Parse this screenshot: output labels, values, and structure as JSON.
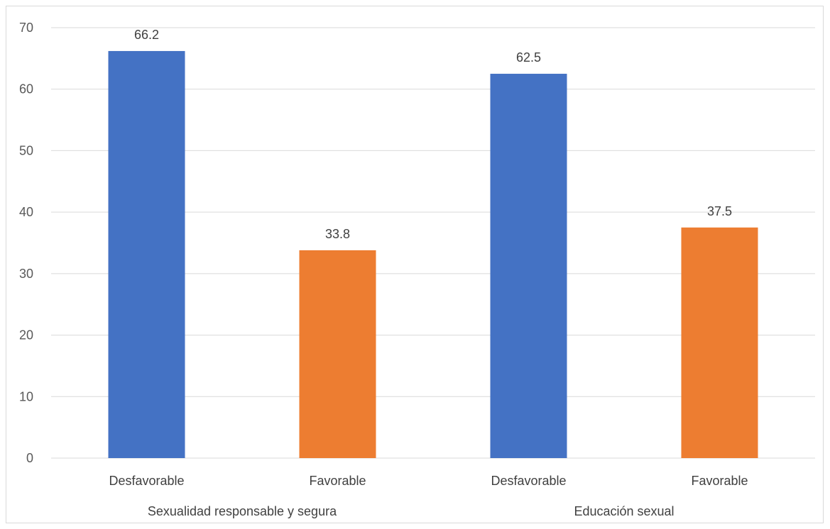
{
  "chart_data": {
    "type": "bar",
    "title": "",
    "xlabel": "",
    "ylabel": "",
    "ylim": [
      0,
      70
    ],
    "yticks": [
      0,
      10,
      20,
      30,
      40,
      50,
      60,
      70
    ],
    "grid": true,
    "legend": "none",
    "groups": [
      {
        "label": "Sexualidad responsable y segura",
        "bars": [
          {
            "category": "Desfavorable",
            "value": 66.2,
            "label": "66.2",
            "color": "#4472c4"
          },
          {
            "category": "Favorable",
            "value": 33.8,
            "label": "33.8",
            "color": "#ed7d31"
          }
        ]
      },
      {
        "label": "Educación sexual",
        "bars": [
          {
            "category": "Desfavorable",
            "value": 62.5,
            "label": "62.5",
            "color": "#4472c4"
          },
          {
            "category": "Favorable",
            "value": 37.5,
            "label": "37.5",
            "color": "#ed7d31"
          }
        ]
      }
    ]
  }
}
